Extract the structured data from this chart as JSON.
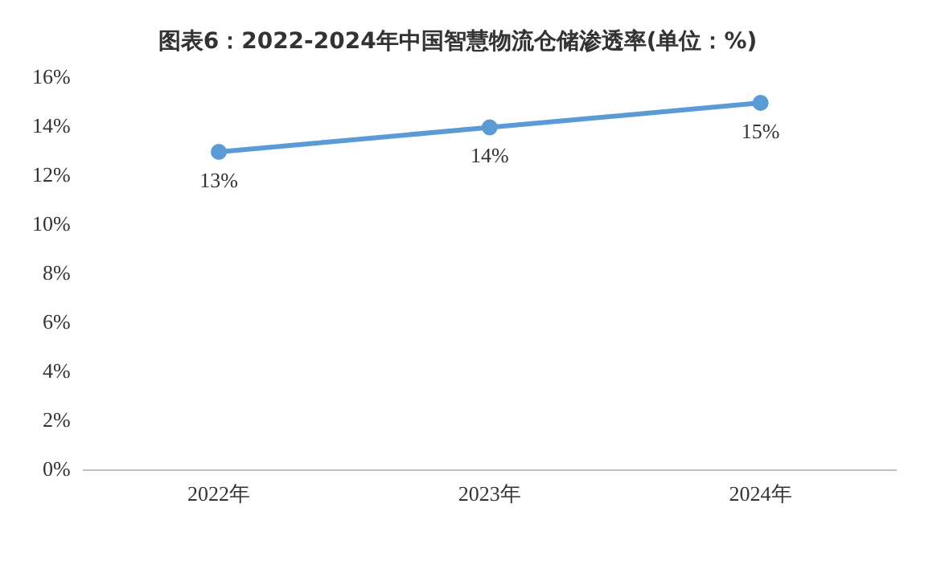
{
  "chart_data": {
    "type": "line",
    "title": "图表6：2022-2024年中国智慧物流仓储渗透率(单位：%)",
    "categories": [
      "2022年",
      "2023年",
      "2024年"
    ],
    "series": [
      {
        "color": "#5b9bd5",
        "values": [
          13,
          14,
          15
        ],
        "value_labels": [
          "13%",
          "14%",
          "15%"
        ]
      }
    ],
    "ylim": [
      0,
      16
    ],
    "yticks": [
      {
        "value": 0,
        "label": "0%"
      },
      {
        "value": 2,
        "label": "2%"
      },
      {
        "value": 4,
        "label": "4%"
      },
      {
        "value": 6,
        "label": "6%"
      },
      {
        "value": 8,
        "label": "8%"
      },
      {
        "value": 10,
        "label": "10%"
      },
      {
        "value": 12,
        "label": "12%"
      },
      {
        "value": 14,
        "label": "14%"
      },
      {
        "value": 16,
        "label": "16%"
      }
    ],
    "grid": false,
    "legend": false,
    "marker": "circle",
    "line_style": "solid"
  }
}
